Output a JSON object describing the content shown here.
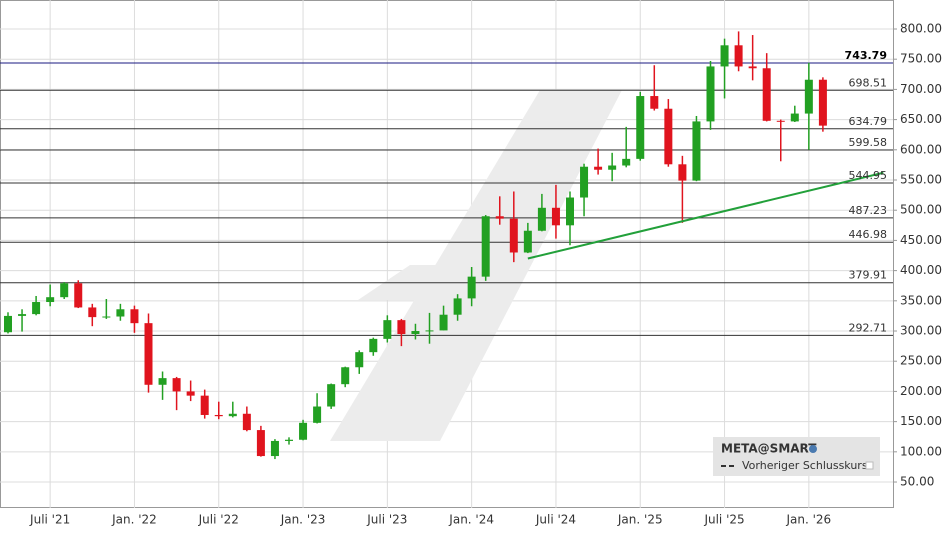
{
  "chart_data": {
    "type": "candlestick",
    "categories": [
      null,
      null,
      null,
      "Juli '21",
      null,
      null,
      null,
      null,
      null,
      "Jan. '22",
      null,
      null,
      null,
      null,
      null,
      "Juli '22",
      null,
      null,
      null,
      null,
      null,
      "Jan. '23",
      null,
      null,
      null,
      null,
      null,
      "Juli '23",
      null,
      null,
      null,
      null,
      null,
      "Jan. '24",
      null,
      null,
      null,
      null,
      null,
      "Juli '24",
      null,
      null,
      null,
      null,
      null,
      "Jan. '25",
      null,
      null,
      null,
      null,
      null,
      "Juli '25",
      null,
      null,
      null,
      null,
      null,
      "Jan. '26",
      null
    ],
    "open": [
      298,
      325,
      328,
      348,
      356,
      379,
      339,
      323,
      324,
      336,
      313,
      211,
      222,
      200,
      193,
      161,
      159,
      163,
      136,
      93,
      118,
      120,
      148,
      175,
      212,
      240,
      265,
      287,
      318,
      295,
      300,
      301,
      327,
      354,
      390,
      490,
      486,
      430,
      466,
      504,
      475,
      521,
      572,
      567,
      574,
      585,
      689,
      668,
      576,
      549,
      647,
      738,
      773,
      738,
      735,
      648,
      647,
      660,
      716
    ],
    "high": [
      331,
      336,
      358,
      377,
      381,
      384,
      345,
      353,
      345,
      342,
      329,
      233,
      224,
      218,
      203,
      183,
      183,
      175,
      143,
      121,
      124,
      153,
      197,
      213,
      241,
      268,
      289,
      326,
      320,
      312,
      330,
      342,
      361,
      406,
      492,
      523,
      531,
      479,
      527,
      542,
      531,
      577,
      602,
      595,
      638,
      696,
      740,
      684,
      590,
      656,
      747,
      784,
      796,
      790,
      760,
      650,
      673,
      744,
      720
    ],
    "low": [
      296,
      299,
      326,
      341,
      353,
      338,
      308,
      320,
      317,
      297,
      198,
      186,
      169,
      184,
      155,
      154,
      157,
      134,
      92,
      88,
      112,
      119,
      147,
      171,
      207,
      229,
      259,
      281,
      275,
      286,
      279,
      301,
      317,
      341,
      383,
      476,
      414,
      429,
      465,
      453,
      442,
      490,
      559,
      548,
      571,
      582,
      665,
      572,
      479,
      548,
      633,
      685,
      730,
      715,
      647,
      581,
      646,
      600,
      630
    ],
    "close": [
      325,
      328,
      348,
      356,
      379,
      339,
      323,
      324,
      336,
      313,
      211,
      222,
      200,
      193,
      161,
      159,
      163,
      136,
      93,
      118,
      120,
      148,
      175,
      212,
      240,
      265,
      287,
      318,
      295,
      300,
      301,
      327,
      354,
      390,
      490,
      486,
      430,
      466,
      504,
      475,
      521,
      572,
      567,
      574,
      585,
      689,
      668,
      576,
      549,
      647,
      738,
      773,
      738,
      735,
      648,
      647,
      660,
      716,
      640
    ],
    "up_color": "#22a022",
    "down_color": "#e0141e",
    "ylim": [
      7,
      848
    ],
    "yticks": [
      {
        "value": 50,
        "label": "50.00"
      },
      {
        "value": 100,
        "label": "100.00"
      },
      {
        "value": 150,
        "label": "150.00"
      },
      {
        "value": 200,
        "label": "200.00"
      },
      {
        "value": 250,
        "label": "250.00"
      },
      {
        "value": 300,
        "label": "300.00"
      },
      {
        "value": 350,
        "label": "350.00"
      },
      {
        "value": 400,
        "label": "400.00"
      },
      {
        "value": 450,
        "label": "450.00"
      },
      {
        "value": 500,
        "label": "500.00"
      },
      {
        "value": 550,
        "label": "550.00"
      },
      {
        "value": 600,
        "label": "600.00"
      },
      {
        "value": 650,
        "label": "650.00"
      },
      {
        "value": 700,
        "label": "700.00"
      },
      {
        "value": 750,
        "label": "750.00"
      },
      {
        "value": 800,
        "label": "800.00"
      }
    ],
    "levels": [
      743.79,
      698.51,
      634.79,
      599.58,
      544.95,
      487.23,
      446.98,
      379.91,
      292.71
    ],
    "level_colors": [
      "#1a1a80",
      "#333333",
      "#333333",
      "#333333",
      "#333333",
      "#333333",
      "#333333",
      "#333333",
      "#333333"
    ],
    "trendline": {
      "x": [
        37,
        62.3
      ],
      "values": [
        420,
        562
      ],
      "color": "#22a03a"
    },
    "grid": true,
    "legend": {
      "title": "META@SMART",
      "items": [
        "Vorheriger Schlusskurs"
      ]
    }
  }
}
